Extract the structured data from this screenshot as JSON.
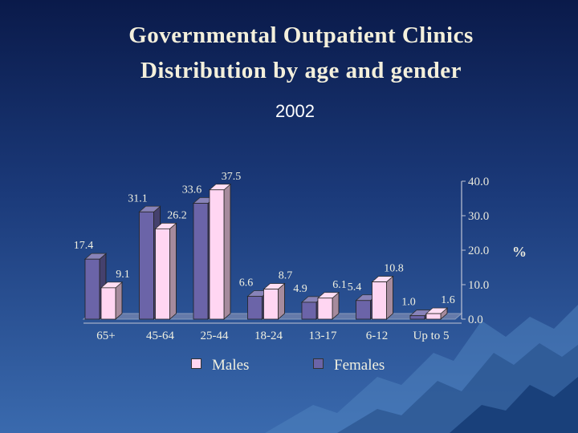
{
  "title_line1": "Governmental Outpatient  Clinics",
  "title_line2": "Distribution by age and gender",
  "subtitle": "2002",
  "colors": {
    "males": "#ffd6f2",
    "females": "#6b64a8"
  },
  "legend": {
    "males": "Males",
    "females": "Females"
  },
  "chart_data": {
    "type": "bar",
    "title": "Governmental Outpatient  Clinics Distribution by age and gender",
    "subtitle": "2002",
    "categories": [
      "65+",
      "45-64",
      "25-44",
      "18-24",
      "13-17",
      "6-12",
      "Up to 5"
    ],
    "series": [
      {
        "name": "Females",
        "values": [
          17.4,
          31.1,
          33.6,
          6.6,
          4.9,
          5.4,
          1.0
        ],
        "labels": [
          "17.4",
          "31.1",
          "33.6",
          "6.6",
          "4.9",
          "5.4",
          "1.0"
        ]
      },
      {
        "name": "Males",
        "values": [
          9.1,
          26.2,
          37.5,
          8.7,
          6.1,
          10.8,
          1.6
        ],
        "labels": [
          "9.1",
          "26.2",
          "37.5",
          "8.7",
          "6.1",
          "10.8",
          "1.6"
        ]
      }
    ],
    "ylabel": "%",
    "ylim": [
      0,
      40
    ],
    "yticks": [
      "0.0",
      "10.0",
      "20.0",
      "30.0",
      "40.0"
    ],
    "y_axis_side": "right",
    "legend_placement": "bottom",
    "grid": false,
    "style": "3d-bar"
  }
}
